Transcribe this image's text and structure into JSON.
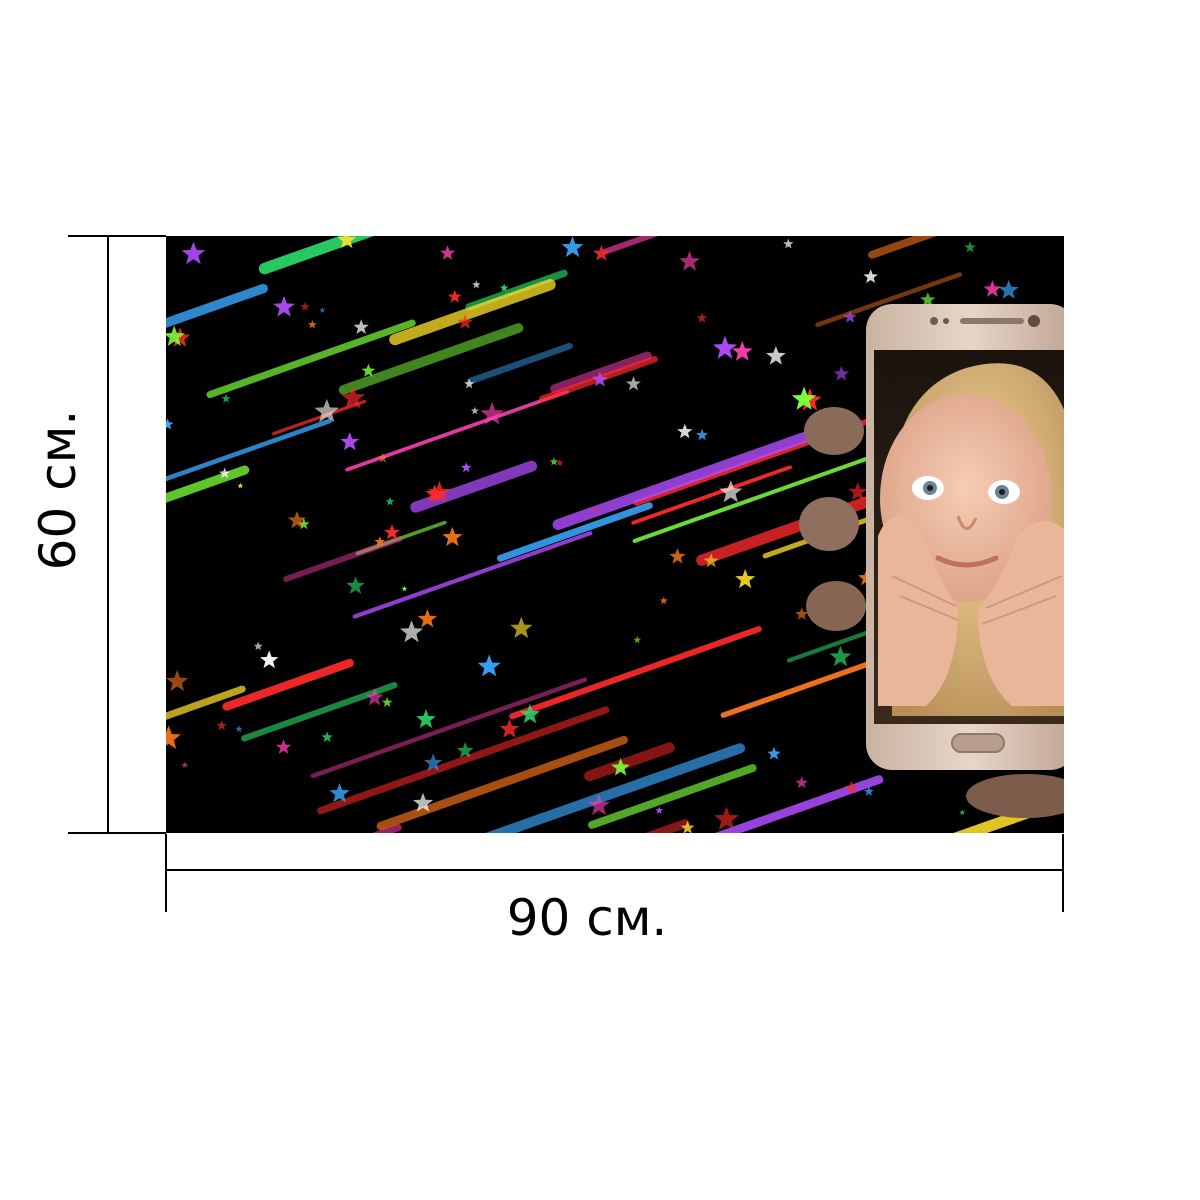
{
  "dimensions": {
    "width_label": "90 см.",
    "height_label": "60 см."
  },
  "poster": {
    "background_color": "#000000",
    "streak_colors": [
      "#ff2a2a",
      "#ff7a1a",
      "#ffe02a",
      "#7dff3a",
      "#2ad86b",
      "#ff3fb4",
      "#b24dff",
      "#3aa8ff"
    ],
    "illustration": "shooting-stars-with-phone-showing-child"
  }
}
